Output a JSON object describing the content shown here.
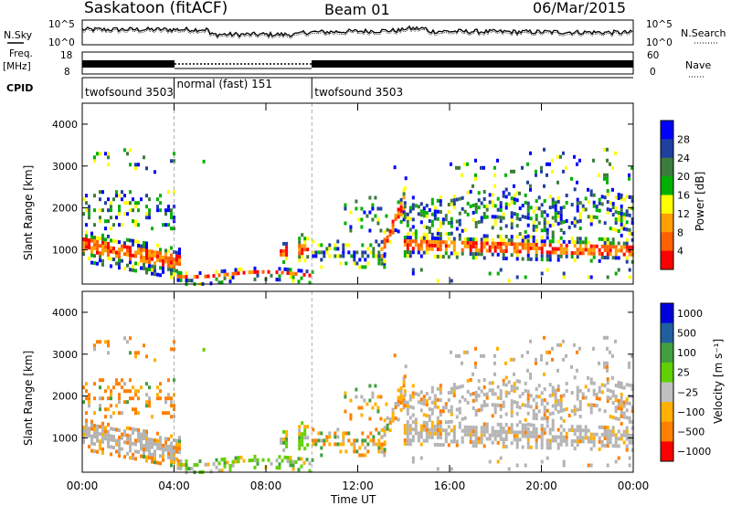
{
  "header": {
    "station": "Saskatoon (fitACF)",
    "beam": "Beam 01",
    "date": "06/Mar/2015"
  },
  "side_labels": {
    "nsky": "N.Sky",
    "freq_line1": "Freq.",
    "freq_line2": "[MHz]",
    "cpid": "CPID",
    "nsearch": "N.Search",
    "nave": "Nave"
  },
  "noise_axis": {
    "left_top": "10^5",
    "left_bottom": "10^0",
    "right_top": "10^5",
    "right_bottom": "10^0"
  },
  "freq_axis": {
    "left_top": "18",
    "left_bottom": "8",
    "right_top": "60",
    "right_bottom": "0"
  },
  "cpid_segments": [
    {
      "label": "twofsound 3503",
      "start_hour": 0,
      "end_hour": 4
    },
    {
      "label": "normal (fast) 151",
      "start_hour": 4,
      "end_hour": 10
    },
    {
      "label": "twofsound 3503",
      "start_hour": 10,
      "end_hour": 24
    }
  ],
  "colors": {
    "power": [
      "#0000ff",
      "#2040a0",
      "#3c7c3c",
      "#00b000",
      "#ffff00",
      "#ffa000",
      "#ff6000",
      "#ff0000"
    ],
    "velocity": [
      "#0000dd",
      "#2060a0",
      "#40a040",
      "#60d000",
      "#c0c0c0",
      "#ffb000",
      "#ff8000",
      "#ff0000"
    ],
    "gray": "#b4b4b4"
  },
  "chart_data": [
    {
      "type": "heatmap",
      "name": "power",
      "ylabel": "Slant Range [km]",
      "ylim": [
        180,
        4500
      ],
      "yticks": [
        "1000",
        "2000",
        "3000",
        "4000"
      ],
      "xlim": [
        0,
        24
      ],
      "colorbar": {
        "label": "Power [dB]",
        "ticks": [
          "4",
          "8",
          "12",
          "16",
          "20",
          "24",
          "28"
        ],
        "range": [
          0,
          30
        ]
      }
    },
    {
      "type": "heatmap",
      "name": "velocity",
      "ylabel": "Slant Range [km]",
      "ylim": [
        180,
        4500
      ],
      "yticks": [
        "1000",
        "2000",
        "3000",
        "4000"
      ],
      "xlim": [
        0,
        24
      ],
      "xticks": [
        "00:00",
        "04:00",
        "08:00",
        "12:00",
        "16:00",
        "20:00",
        "00:00"
      ],
      "xlabel": "Time UT",
      "colorbar": {
        "label": "Velocity [m s⁻¹]",
        "ticks": [
          "1000",
          "500",
          "100",
          "25",
          "−25",
          "−100",
          "−500",
          "−1000"
        ]
      }
    }
  ]
}
